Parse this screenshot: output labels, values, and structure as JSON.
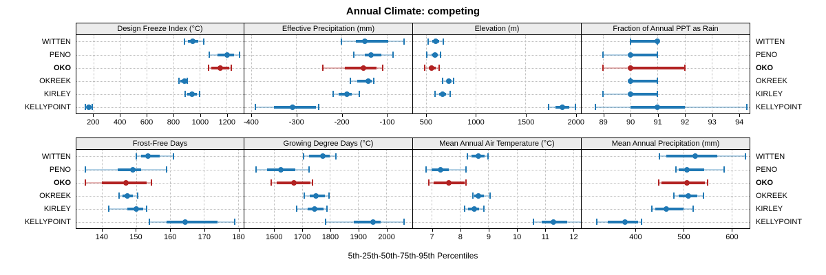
{
  "title": "Annual Climate: competing",
  "xlabel": "5th-25th-50th-75th-95th Percentiles",
  "sites": [
    "WITTEN",
    "PENO",
    "OKO",
    "OKREEK",
    "KIRLEY",
    "KELLYPOINT"
  ],
  "highlight_site": "OKO",
  "colors": {
    "series": "#1f78b4",
    "series_light": "rgba(31,120,180,0.35)",
    "highlight": "#b22222",
    "highlight_light": "rgba(178,34,34,0.35)",
    "strip_bg": "#ececec",
    "grid": "#bdbdbd",
    "border": "#000000"
  },
  "chart_data": {
    "type": "dotplot-interval",
    "statistics": [
      "p5",
      "p25",
      "p50",
      "p75",
      "p95"
    ],
    "rows": [
      "WITTEN",
      "PENO",
      "OKO",
      "OKREEK",
      "KIRLEY",
      "KELLYPOINT"
    ],
    "legend_position": "none",
    "grid": "dotted",
    "panels": [
      {
        "strip": "Design Freeze Index (°C)",
        "xlim": [
          70,
          1330
        ],
        "ticks": [
          200,
          400,
          600,
          800,
          1000,
          1200
        ],
        "values": [
          [
            885,
            910,
            947,
            990,
            1027
          ],
          [
            1070,
            1133,
            1207,
            1255,
            1300
          ],
          [
            1067,
            1087,
            1152,
            1220,
            1237
          ],
          [
            845,
            855,
            883,
            900,
            905
          ],
          [
            890,
            905,
            940,
            975,
            1000
          ],
          [
            135,
            150,
            165,
            178,
            188
          ]
        ]
      },
      {
        "strip": "Effective Precipitation (mm)",
        "xlim": [
          -415,
          -43
        ],
        "ticks": [
          -400,
          -300,
          -200,
          -100
        ],
        "values": [
          [
            -200,
            -168,
            -148,
            -96,
            -61
          ],
          [
            -172,
            -148,
            -134,
            -112,
            -86
          ],
          [
            -241,
            -192,
            -152,
            -122,
            -108
          ],
          [
            -180,
            -165,
            -140,
            -133,
            -129
          ],
          [
            -218,
            -206,
            -188,
            -177,
            -160
          ],
          [
            -390,
            -350,
            -308,
            -256,
            -250
          ]
        ]
      },
      {
        "strip": "Elevation (m)",
        "xlim": [
          370,
          2057
        ],
        "ticks": [
          500,
          1000,
          1500,
          2000
        ],
        "values": [
          [
            525,
            565,
            595,
            630,
            675
          ],
          [
            510,
            560,
            590,
            620,
            650
          ],
          [
            490,
            530,
            560,
            600,
            630
          ],
          [
            670,
            710,
            730,
            760,
            780
          ],
          [
            590,
            635,
            665,
            700,
            745
          ],
          [
            1735,
            1800,
            1870,
            1940,
            2000
          ]
        ]
      },
      {
        "strip": "Fraction of Annual PPT as Rain",
        "xlim": [
          88.2,
          94.4
        ],
        "ticks": [
          89,
          90,
          91,
          92,
          93,
          94
        ],
        "values": [
          [
            90,
            90,
            91,
            91,
            91
          ],
          [
            89,
            90,
            90,
            91,
            91
          ],
          [
            89,
            90,
            90,
            92,
            92
          ],
          [
            90,
            90,
            90,
            91,
            91
          ],
          [
            89,
            90,
            90,
            91,
            91
          ],
          [
            88.7,
            90,
            91,
            92,
            94.3
          ]
        ]
      },
      {
        "strip": "Frost-Free Days",
        "xlim": [
          132.4,
          181.7
        ],
        "ticks": [
          140,
          150,
          160,
          170,
          180
        ],
        "values": [
          [
            150,
            151.5,
            153.5,
            157,
            161
          ],
          [
            135,
            144.5,
            149,
            151.5,
            159
          ],
          [
            135,
            140,
            147,
            153,
            154.5
          ],
          [
            145,
            146,
            147.5,
            149,
            150.5
          ],
          [
            142,
            147.5,
            150,
            152,
            153
          ],
          [
            154,
            159,
            164.5,
            174,
            179
          ]
        ]
      },
      {
        "strip": "Growing Degree Days (°C)",
        "xlim": [
          1494,
          2094
        ],
        "ticks": [
          1600,
          1700,
          1800,
          1900,
          2000
        ],
        "values": [
          [
            1705,
            1725,
            1775,
            1800,
            1820
          ],
          [
            1535,
            1575,
            1625,
            1675,
            1725
          ],
          [
            1590,
            1610,
            1672,
            1730,
            1737
          ],
          [
            1708,
            1728,
            1750,
            1782,
            1797
          ],
          [
            1680,
            1720,
            1745,
            1778,
            1788
          ],
          [
            1785,
            1885,
            1953,
            1980,
            2065
          ]
        ]
      },
      {
        "strip": "Mean Annual Air Temperature (°C)",
        "xlim": [
          6.33,
          12.28
        ],
        "ticks": [
          7,
          8,
          9,
          10,
          11,
          12
        ],
        "values": [
          [
            8.25,
            8.4,
            8.65,
            8.87,
            9.0
          ],
          [
            6.8,
            7.0,
            7.3,
            7.6,
            8.2
          ],
          [
            6.9,
            7.05,
            7.6,
            8.15,
            8.2
          ],
          [
            8.45,
            8.5,
            8.65,
            8.85,
            9.05
          ],
          [
            8.15,
            8.27,
            8.5,
            8.67,
            8.85
          ],
          [
            10.6,
            10.9,
            11.3,
            11.8,
            12.3
          ]
        ]
      },
      {
        "strip": "Mean Annual Precipitation (mm)",
        "xlim": [
          288,
          638
        ],
        "ticks": [
          400,
          500,
          600
        ],
        "values": [
          [
            450,
            465,
            525,
            570,
            630
          ],
          [
            485,
            490,
            508,
            543,
            585
          ],
          [
            448,
            455,
            508,
            545,
            551
          ],
          [
            480,
            490,
            511,
            529,
            542
          ],
          [
            435,
            441,
            464,
            500,
            520
          ],
          [
            320,
            343,
            378,
            405,
            413
          ]
        ]
      }
    ]
  }
}
